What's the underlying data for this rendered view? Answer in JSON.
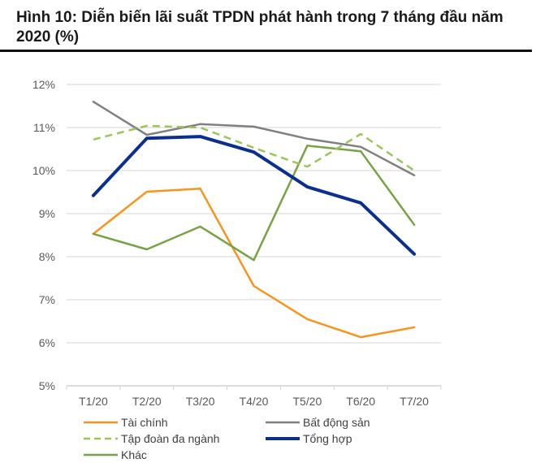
{
  "header": {
    "title": "Hình 10: Diễn biến lãi suất TPDN phát hành trong 7 tháng đầu năm 2020 (%)"
  },
  "chart_data": {
    "type": "line",
    "title": "Hình 10: Diễn biến lãi suất TPDN phát hành trong 7 tháng đầu năm 2020 (%)",
    "xlabel": "",
    "ylabel": "",
    "categories": [
      "T1/20",
      "T2/20",
      "T3/20",
      "T4/20",
      "T5/20",
      "T6/20",
      "T7/20"
    ],
    "ylim": [
      5,
      12
    ],
    "yticks": [
      5,
      6,
      7,
      8,
      9,
      10,
      11,
      12
    ],
    "ytick_labels": [
      "5%",
      "6%",
      "7%",
      "8%",
      "9%",
      "10%",
      "11%",
      "12%"
    ],
    "grid": "horizontal",
    "legend_position": "bottom",
    "series": [
      {
        "name": "Tài chính",
        "color": "#F7941D",
        "style": "solid",
        "width": 2.5,
        "values": [
          8.53,
          9.51,
          9.58,
          7.32,
          6.55,
          6.13,
          6.36
        ]
      },
      {
        "name": "Bất động sản",
        "color": "#808080",
        "style": "solid",
        "width": 2.5,
        "values": [
          11.6,
          10.83,
          11.08,
          11.02,
          10.74,
          10.55,
          9.89
        ]
      },
      {
        "name": "Tập đoàn đa ngành",
        "color": "#9BC55A",
        "style": "dashed",
        "width": 2.5,
        "values": [
          10.72,
          11.04,
          11.0,
          10.53,
          10.09,
          10.85,
          10.0
        ]
      },
      {
        "name": "Tổng hợp",
        "color": "#0A2F8F",
        "style": "solid",
        "width": 4,
        "values": [
          9.42,
          10.75,
          10.79,
          10.43,
          9.62,
          9.25,
          8.06
        ]
      },
      {
        "name": "Khác",
        "color": "#77A342",
        "style": "solid",
        "width": 2.5,
        "values": [
          8.53,
          8.17,
          8.7,
          7.92,
          10.58,
          10.45,
          8.74
        ]
      }
    ]
  }
}
